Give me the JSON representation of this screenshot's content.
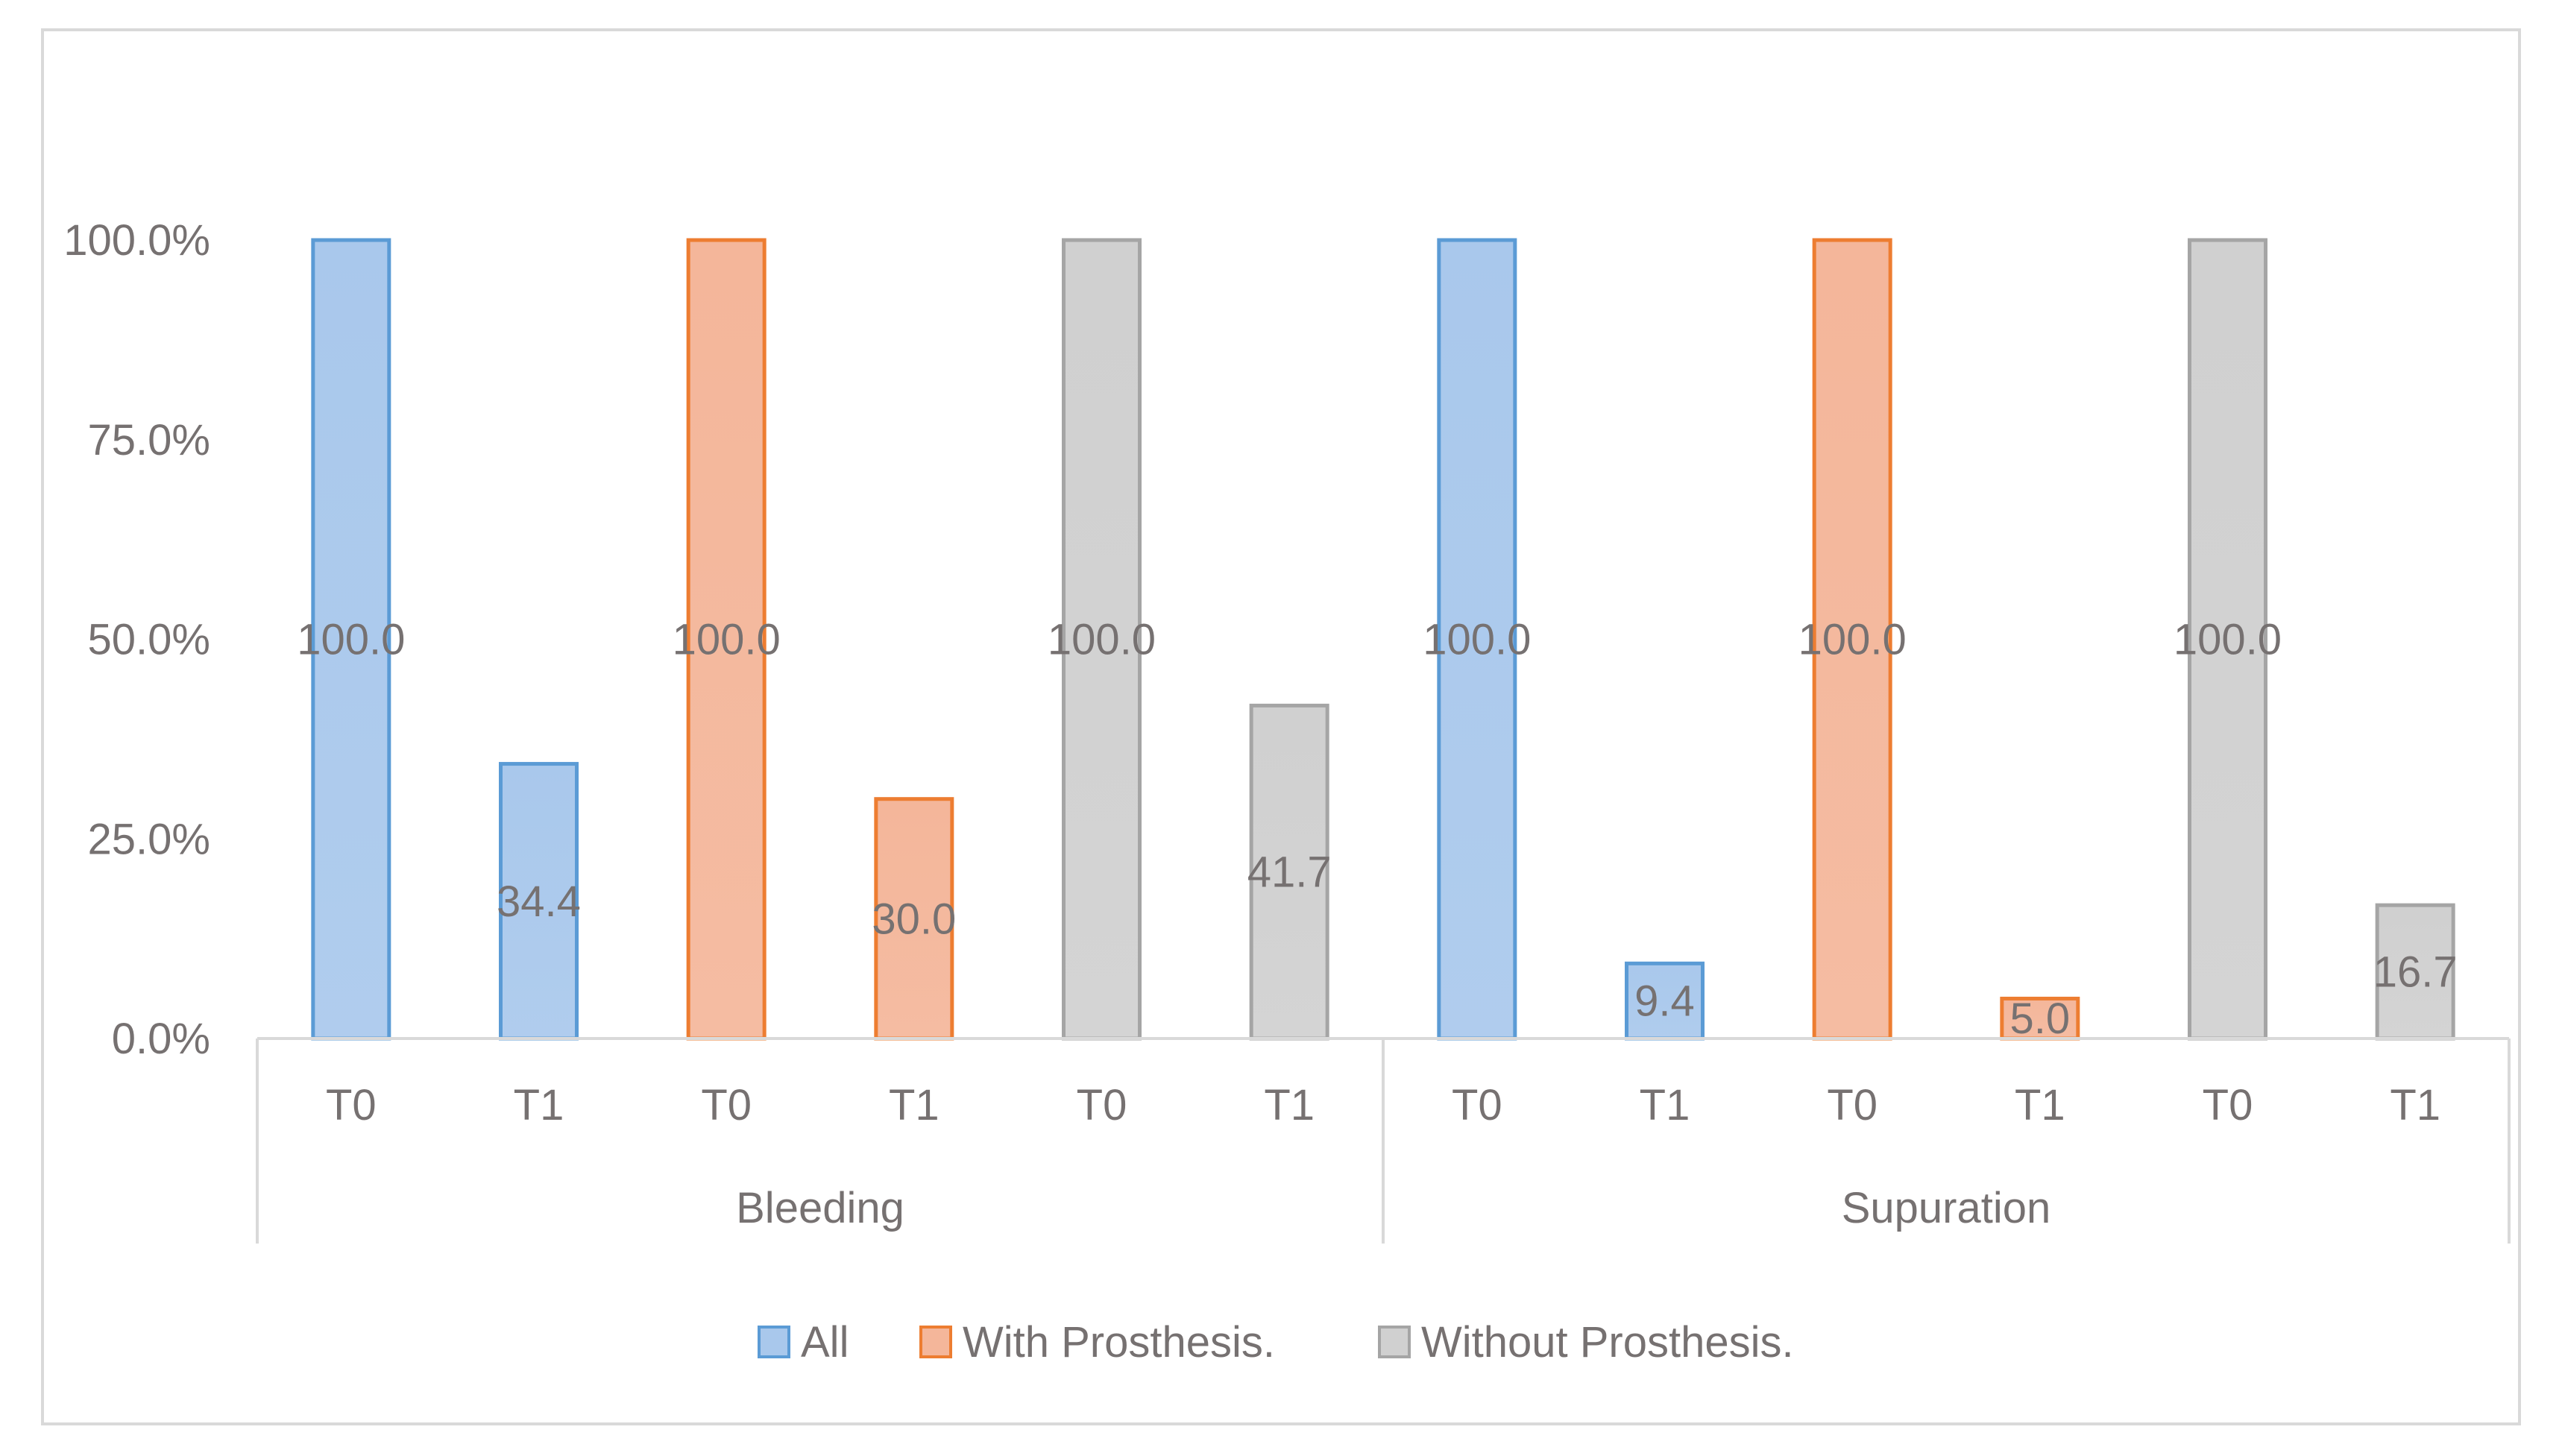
{
  "chart_data": {
    "type": "bar",
    "title": "",
    "xlabel": "",
    "ylabel": "",
    "ylim": [
      0,
      100
    ],
    "yticks": [
      {
        "value": 0,
        "label": "0.0%"
      },
      {
        "value": 25,
        "label": "25.0%"
      },
      {
        "value": 50,
        "label": "50.0%"
      },
      {
        "value": 75,
        "label": "75.0%"
      },
      {
        "value": 100,
        "label": "100.0%"
      }
    ],
    "groups": [
      {
        "name": "Bleeding",
        "categories": [
          "T0",
          "T1",
          "T0",
          "T1",
          "T0",
          "T1"
        ]
      },
      {
        "name": "Supuration",
        "categories": [
          "T0",
          "T1",
          "T0",
          "T1",
          "T0",
          "T1"
        ]
      }
    ],
    "series": [
      {
        "name": "All",
        "color": "#5B9BD5",
        "fill": "#A9C8EC",
        "values": {
          "Bleeding": {
            "T0": 100.0,
            "T1": 34.4
          },
          "Supuration": {
            "T0": 100.0,
            "T1": 9.4
          }
        }
      },
      {
        "name": "With Prosthesis.",
        "color": "#ED7D31",
        "fill": "#F4B69A",
        "values": {
          "Bleeding": {
            "T0": 100.0,
            "T1": 30.0
          },
          "Supuration": {
            "T0": 100.0,
            "T1": 5.0
          }
        }
      },
      {
        "name": "Without Prosthesis.",
        "color": "#A5A5A5",
        "fill": "#D0D0D0",
        "values": {
          "Bleeding": {
            "T0": 100.0,
            "T1": 41.7
          },
          "Supuration": {
            "T0": 100.0,
            "T1": 16.7
          }
        }
      }
    ],
    "bars": [
      {
        "group": "Bleeding",
        "category": "T0",
        "series": 0,
        "value": 100.0,
        "label": "100.0"
      },
      {
        "group": "Bleeding",
        "category": "T1",
        "series": 0,
        "value": 34.4,
        "label": "34.4"
      },
      {
        "group": "Bleeding",
        "category": "T0",
        "series": 1,
        "value": 100.0,
        "label": "100.0"
      },
      {
        "group": "Bleeding",
        "category": "T1",
        "series": 1,
        "value": 30.0,
        "label": "30.0"
      },
      {
        "group": "Bleeding",
        "category": "T0",
        "series": 2,
        "value": 100.0,
        "label": "100.0"
      },
      {
        "group": "Bleeding",
        "category": "T1",
        "series": 2,
        "value": 41.7,
        "label": "41.7"
      },
      {
        "group": "Supuration",
        "category": "T0",
        "series": 0,
        "value": 100.0,
        "label": "100.0"
      },
      {
        "group": "Supuration",
        "category": "T1",
        "series": 0,
        "value": 9.4,
        "label": "9.4"
      },
      {
        "group": "Supuration",
        "category": "T0",
        "series": 1,
        "value": 100.0,
        "label": "100.0"
      },
      {
        "group": "Supuration",
        "category": "T1",
        "series": 1,
        "value": 5.0,
        "label": "5.0"
      },
      {
        "group": "Supuration",
        "category": "T0",
        "series": 2,
        "value": 100.0,
        "label": "100.0"
      },
      {
        "group": "Supuration",
        "category": "T1",
        "series": 2,
        "value": 16.7,
        "label": "16.7"
      }
    ],
    "legend_position": "bottom",
    "grid": false
  }
}
